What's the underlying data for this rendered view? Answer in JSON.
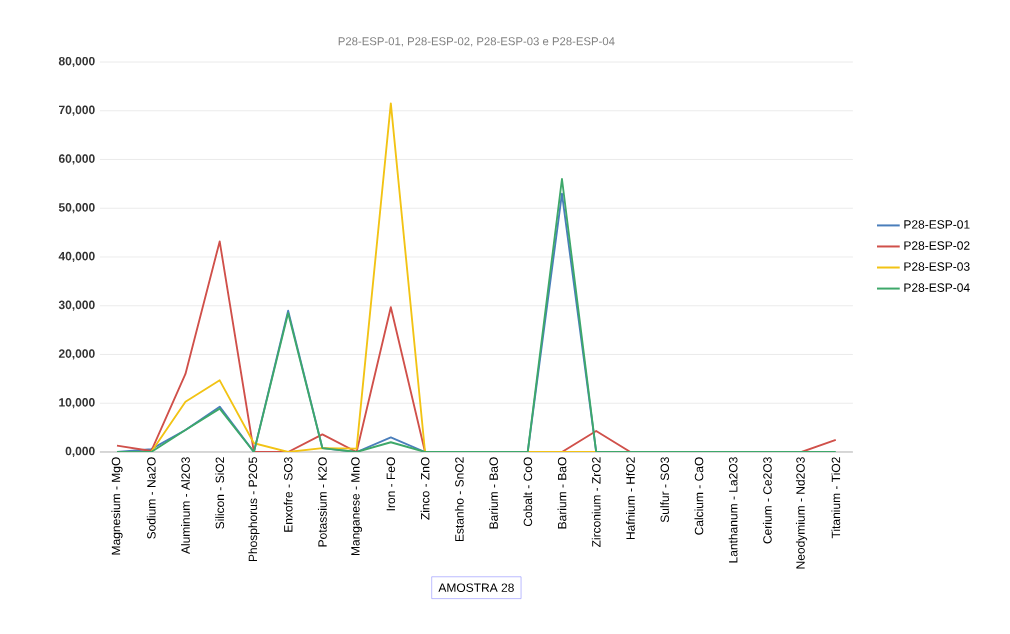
{
  "chart_data": {
    "type": "line",
    "title": "P28-ESP-01, P28-ESP-02, P28-ESP-03 e P28-ESP-04",
    "xlabel": "AMOSTRA 28",
    "categories": [
      "Magnesium - MgO",
      "Sodium - Na2O",
      "Aluminum - Al2O3",
      "Silicon - SiO2",
      "Phosphorus - P2O5",
      "Enxofre - SO3",
      "Potassium - K2O",
      "Manganese - MnO",
      "Iron - FeO",
      "Zinco - ZnO",
      "Estanho - SnO2",
      "Barium - BaO",
      "Cobalt - CoO",
      "Barium - BaO",
      "Zirconium - ZrO2",
      "Hafnium - HfO2",
      "Sulfur - SO3",
      "Calcium - CaO",
      "Lanthanum - La2O3",
      "Cerium - Ce2O3",
      "Neodymium - Nd2O3",
      "Titanium - TiO2"
    ],
    "series": [
      {
        "name": "P28-ESP-01",
        "color": "#4a7ebb",
        "values": [
          0,
          600,
          4500,
          9300,
          0,
          29000,
          800,
          0,
          3000,
          0,
          0,
          0,
          0,
          53000,
          0,
          0,
          null,
          null,
          null,
          null,
          null,
          null
        ]
      },
      {
        "name": "P28-ESP-02",
        "color": "#d0504a",
        "values": [
          1300,
          200,
          16000,
          43200,
          0,
          0,
          3600,
          0,
          29700,
          0,
          0,
          0,
          0,
          0,
          4300,
          0,
          0,
          0,
          0,
          0,
          0,
          2500
        ]
      },
      {
        "name": "P28-ESP-03",
        "color": "#f2c314",
        "values": [
          0,
          0,
          10300,
          14700,
          1800,
          0,
          800,
          700,
          71500,
          0,
          0,
          0,
          0,
          0,
          0,
          0,
          null,
          null,
          null,
          null,
          null,
          null
        ]
      },
      {
        "name": "P28-ESP-04",
        "color": "#3ea86a",
        "values": [
          0,
          0,
          4500,
          8900,
          0,
          28500,
          800,
          0,
          2000,
          0,
          0,
          0,
          0,
          56000,
          0,
          0,
          0,
          0,
          0,
          0,
          0,
          0
        ]
      }
    ],
    "ylim": [
      0,
      80000
    ],
    "yticks": [
      {
        "value": 0,
        "label": "0,000"
      },
      {
        "value": 10000,
        "label": "10,000"
      },
      {
        "value": 20000,
        "label": "20,000"
      },
      {
        "value": 30000,
        "label": "30,000"
      },
      {
        "value": 40000,
        "label": "40,000"
      },
      {
        "value": 50000,
        "label": "50,000"
      },
      {
        "value": 60000,
        "label": "60,000"
      },
      {
        "value": 70000,
        "label": "70,000"
      },
      {
        "value": 80000,
        "label": "80,000"
      }
    ],
    "grid": "y",
    "legend": "right",
    "marker": "none",
    "line_style": "solid"
  }
}
